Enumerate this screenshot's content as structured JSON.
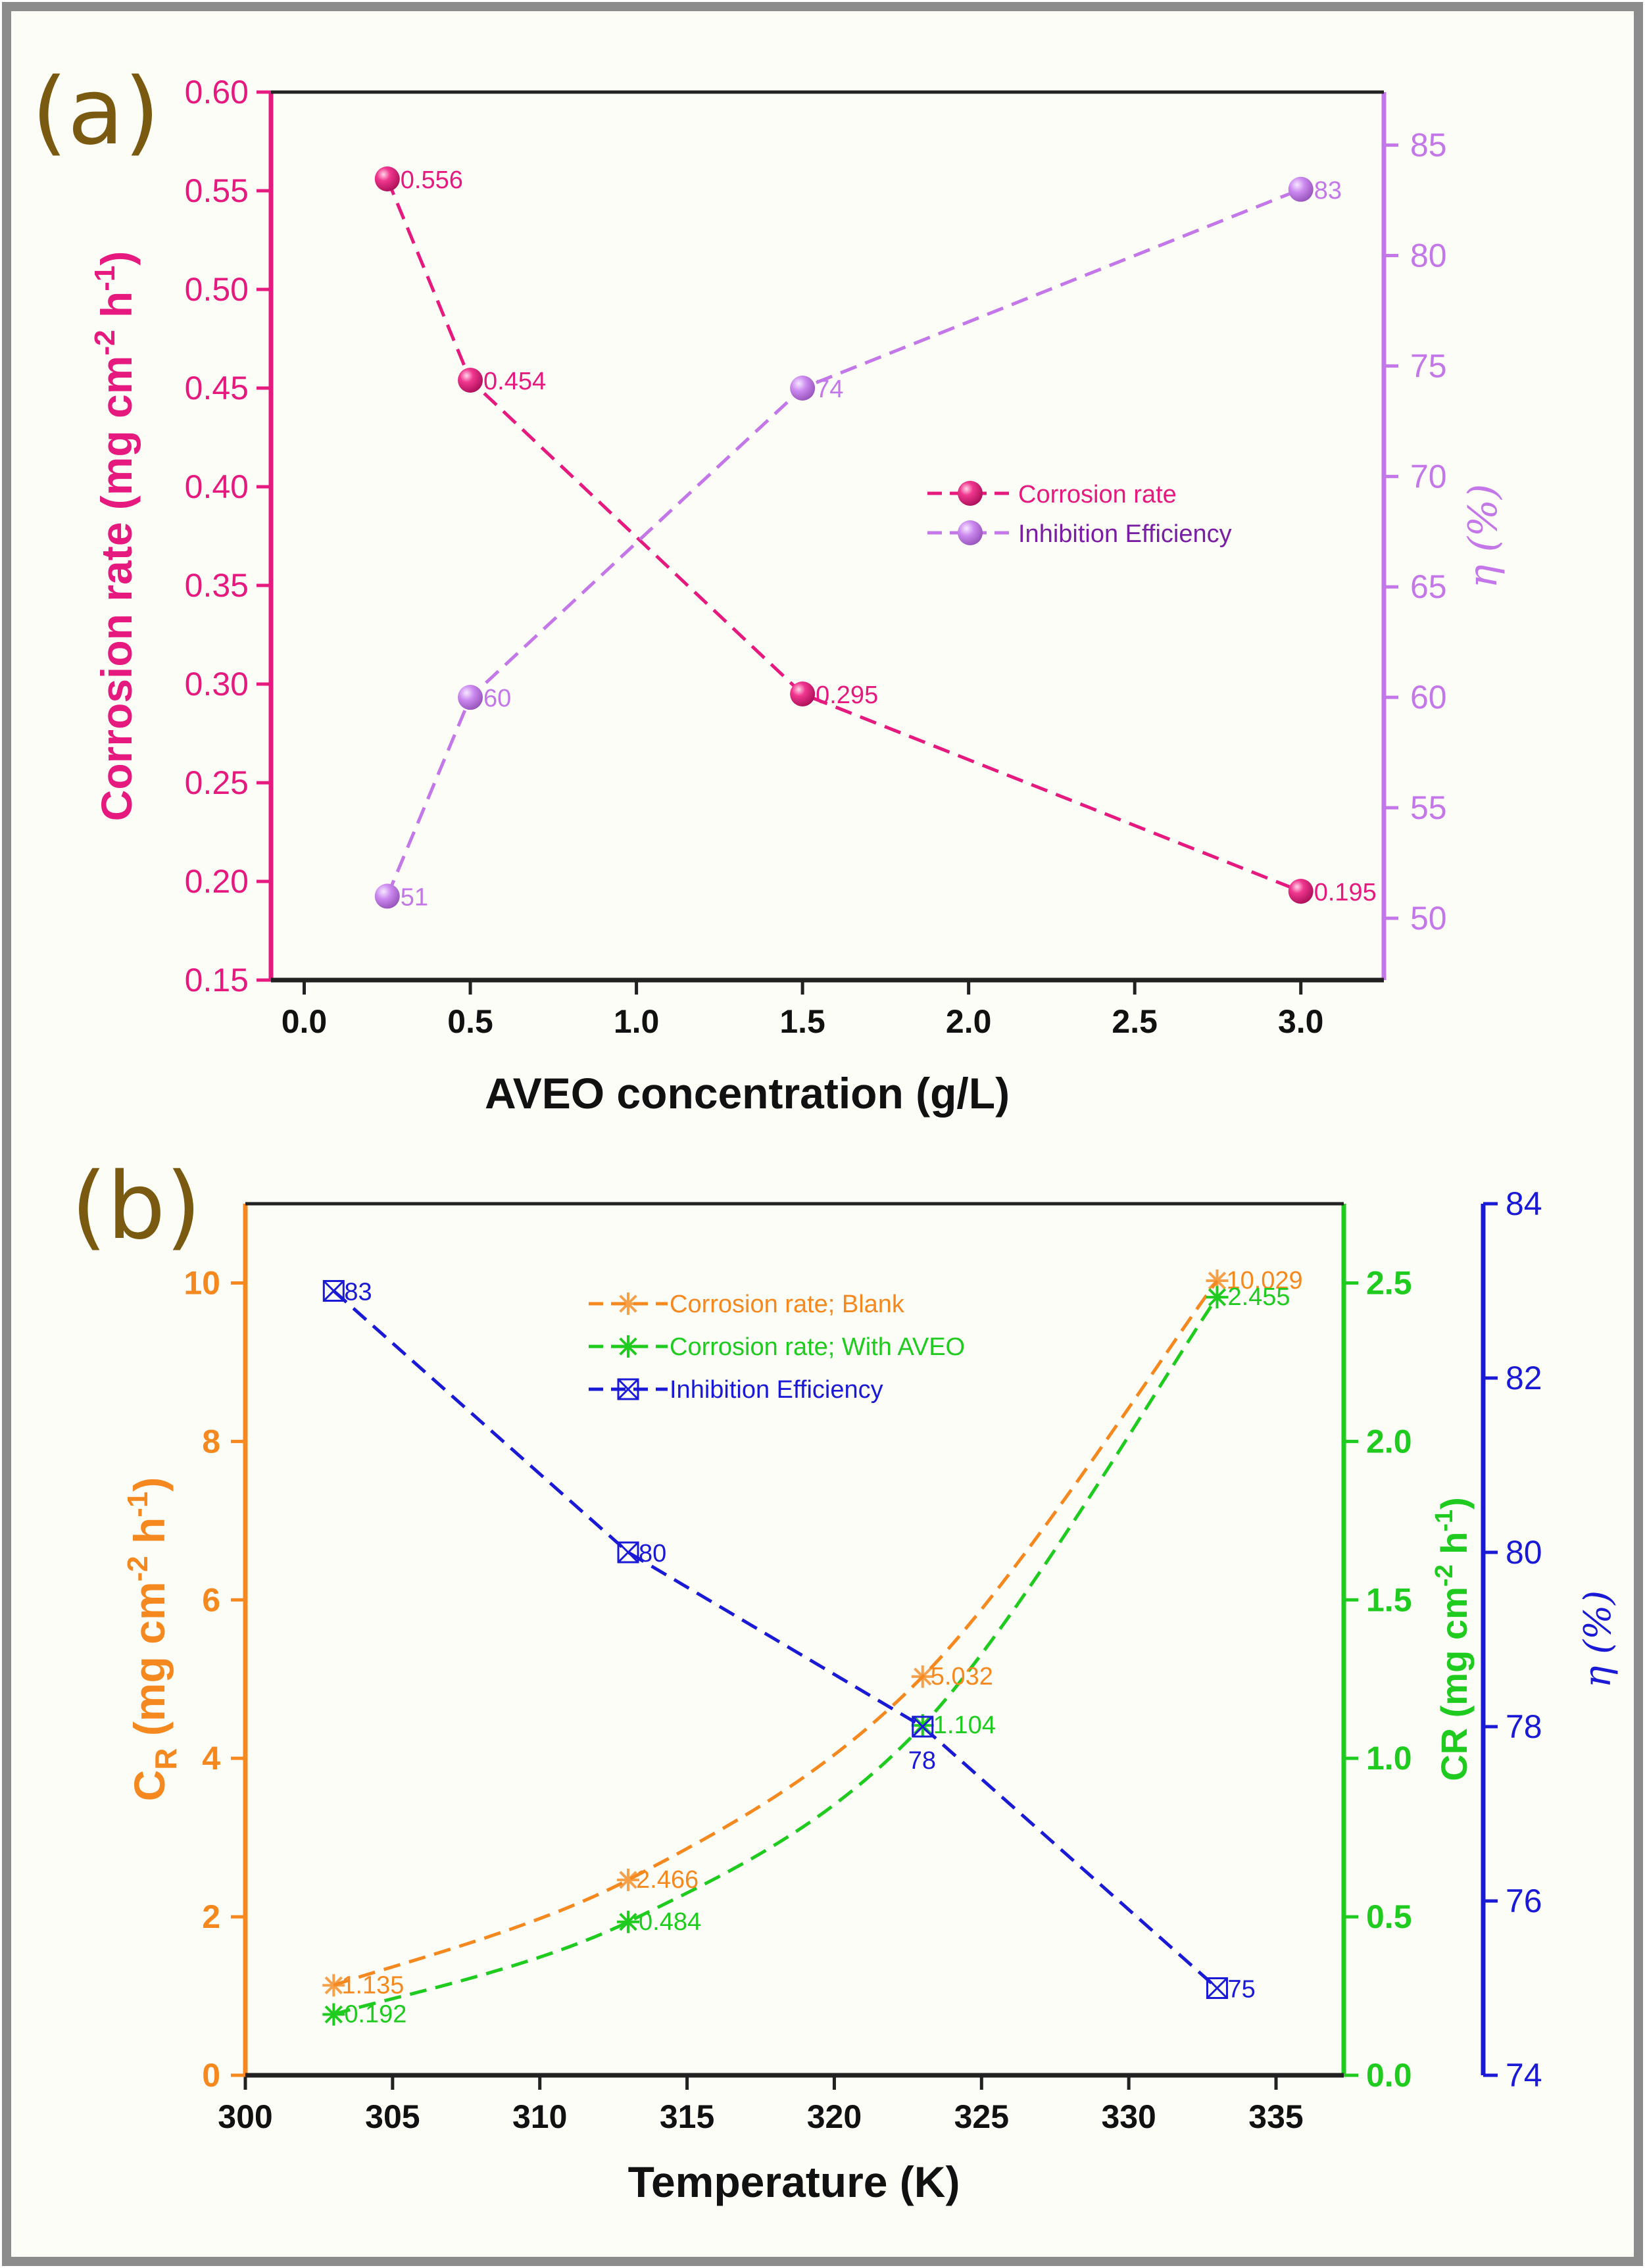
{
  "chart_data": [
    {
      "type": "line",
      "panel_label": "(a)",
      "xlabel": "AVEO concentration (g/L)",
      "xlim": [
        -0.1,
        3.25
      ],
      "xticks": [
        0.0,
        0.5,
        1.0,
        1.5,
        2.0,
        2.5,
        3.0
      ],
      "xtick_labels": [
        "0.0",
        "0.5",
        "1.0",
        "1.5",
        "2.0",
        "2.5",
        "3.0"
      ],
      "ylabel_left": "Corrosion rate (mg cm",
      "ylabel_left_sup1": "-2",
      "ylabel_left_mid": " h",
      "ylabel_left_sup2": "-1",
      "ylabel_left_end": ")",
      "ylim_left": [
        0.15,
        0.6
      ],
      "yticks_left": [
        "0.15",
        "0.20",
        "0.25",
        "0.30",
        "0.35",
        "0.40",
        "0.45",
        "0.50",
        "0.55",
        "0.60"
      ],
      "ylabel_right": "η (%)",
      "ylim_right": [
        47.2,
        87.4
      ],
      "yticks_right": [
        "50",
        "55",
        "60",
        "65",
        "70",
        "75",
        "80",
        "85"
      ],
      "legend_position": "center-right",
      "series": [
        {
          "name": "Corrosion rate",
          "axis": "left",
          "color": "#e6197f",
          "marker": "sphere",
          "x": [
            0.25,
            0.5,
            1.5,
            3.0
          ],
          "values": [
            0.556,
            0.454,
            0.295,
            0.195
          ],
          "labels": [
            "0.556",
            "0.454",
            "0.295",
            "0.195"
          ]
        },
        {
          "name": "Inhibition Efficiency",
          "axis": "right",
          "color": "#c377e8",
          "marker": "sphere",
          "x": [
            0.25,
            0.5,
            1.5,
            3.0
          ],
          "values": [
            51,
            60,
            74,
            83
          ],
          "labels": [
            "51",
            "60",
            "74",
            "83"
          ]
        }
      ],
      "colors": {
        "left_axis": "#e6197f",
        "right_axis": "#c377e8",
        "legend_text": "#7a1fa3"
      }
    },
    {
      "type": "line",
      "panel_label": "(b)",
      "xlabel": "Temperature (K)",
      "xlim": [
        300,
        337.3
      ],
      "xticks": [
        300,
        305,
        310,
        315,
        320,
        325,
        330,
        335
      ],
      "xtick_labels": [
        "300",
        "305",
        "310",
        "315",
        "320",
        "325",
        "330",
        "335"
      ],
      "ylabel_left": "C",
      "ylabel_left_sub": "R",
      "ylabel_left_rest": " (mg cm",
      "ylabel_left_sup1": "-2",
      "ylabel_left_mid": " h",
      "ylabel_left_sup2": "-1",
      "ylabel_left_end": ")",
      "ylim_left": [
        0,
        11
      ],
      "yticks_left": [
        "0",
        "2",
        "4",
        "6",
        "8",
        "10"
      ],
      "ylabel_mid": "CR (mg cm",
      "ylabel_mid_sup1": "-2",
      "ylabel_mid_mid": " h",
      "ylabel_mid_sup2": "-1",
      "ylabel_mid_end": ")",
      "ylim_mid": [
        0,
        2.75
      ],
      "yticks_mid": [
        "0.0",
        "0.5",
        "1.0",
        "1.5",
        "2.0",
        "2.5"
      ],
      "ylabel_right": "η (%)",
      "ylim_right": [
        74,
        84
      ],
      "yticks_right": [
        "74",
        "76",
        "78",
        "80",
        "82",
        "84"
      ],
      "legend_position": "top-center",
      "series": [
        {
          "name": "Corrosion rate; Blank",
          "axis": "left",
          "color": "#f5891f",
          "marker": "asterisk-x",
          "x": [
            303,
            313,
            323,
            333
          ],
          "values": [
            1.135,
            2.466,
            5.032,
            10.029
          ],
          "labels": [
            "1.135",
            "2.466",
            "5.032",
            "10.029"
          ]
        },
        {
          "name": "Corrosion rate; With AVEO",
          "axis": "mid",
          "color": "#1ecb1e",
          "marker": "asterisk",
          "x": [
            303,
            313,
            323,
            333
          ],
          "values": [
            0.192,
            0.484,
            1.104,
            2.455
          ],
          "labels": [
            "0.192",
            "0.484",
            "1.104",
            "2.455"
          ]
        },
        {
          "name": "Inhibition Efficiency",
          "axis": "right",
          "color": "#1a1ad6",
          "marker": "box-x",
          "x": [
            303,
            313,
            323,
            333
          ],
          "values": [
            83,
            80,
            78,
            75
          ],
          "labels": [
            "83",
            "80",
            "78",
            "75"
          ]
        }
      ],
      "colors": {
        "left_axis": "#f5891f",
        "mid_axis": "#1ecb1e",
        "right_axis": "#1a1ad6"
      }
    }
  ]
}
